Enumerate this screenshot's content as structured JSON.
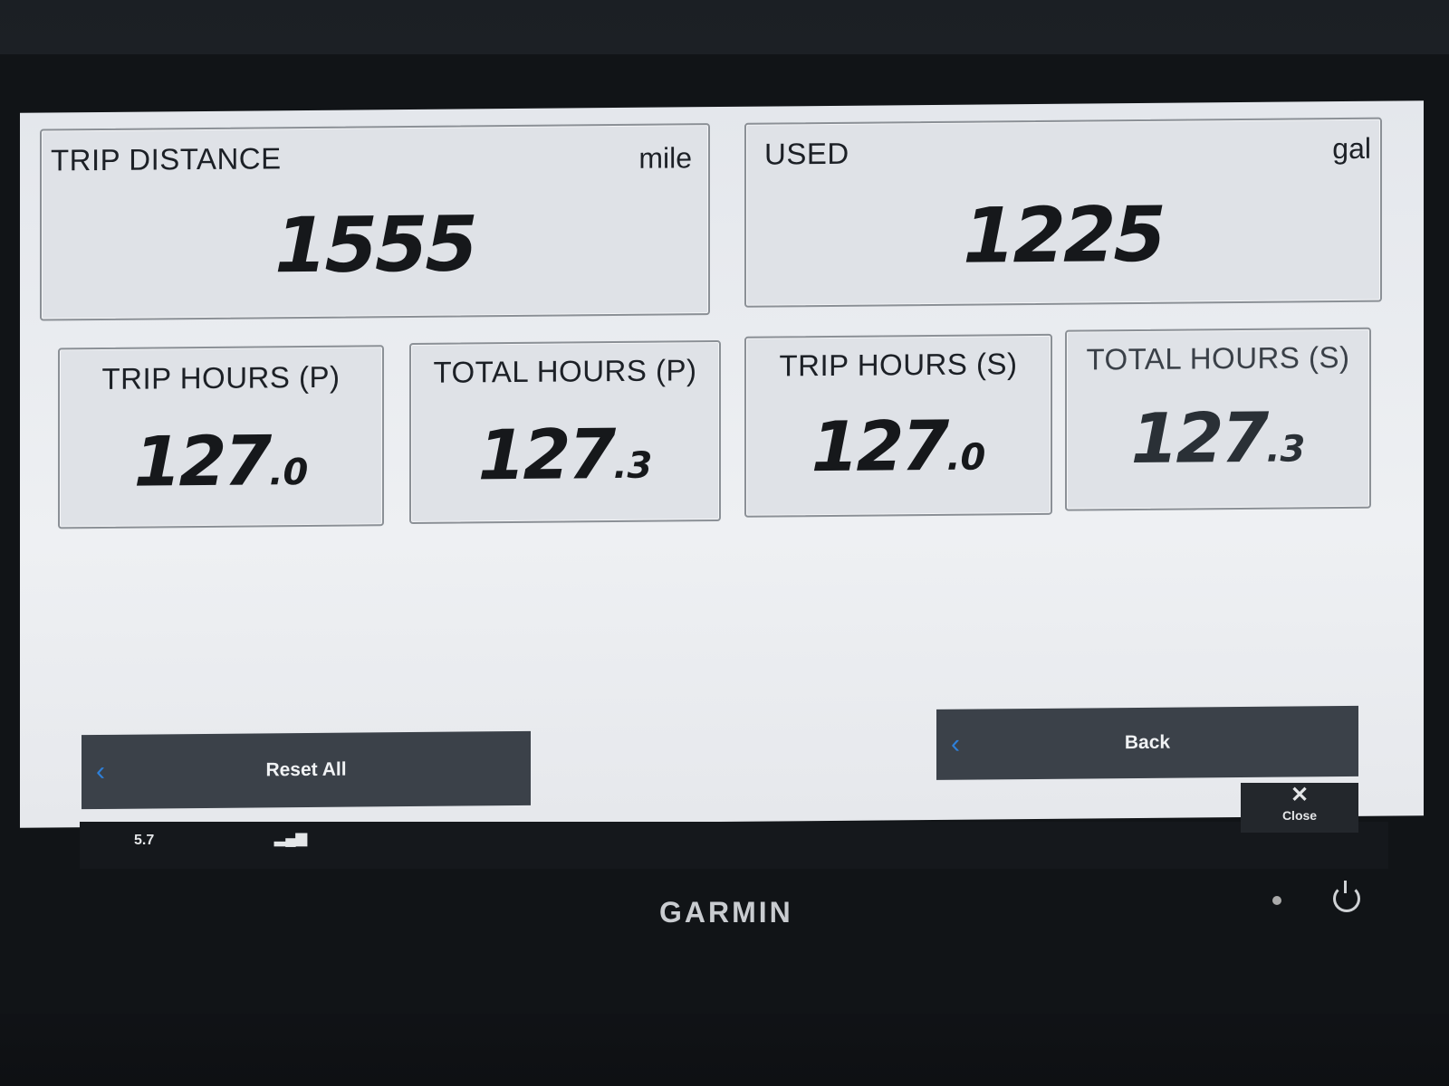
{
  "tiles": {
    "trip_distance": {
      "label": "TRIP DISTANCE",
      "unit": "mile",
      "value": "1555"
    },
    "used": {
      "label": "USED",
      "unit": "gal",
      "value": "1225"
    },
    "trip_hours_p": {
      "label": "TRIP HOURS (P)",
      "value_int": "127",
      "value_dec": ".0"
    },
    "total_hours_p": {
      "label": "TOTAL HOURS (P)",
      "value_int": "127",
      "value_dec": ".3"
    },
    "trip_hours_s": {
      "label": "TRIP HOURS (S)",
      "value_int": "127",
      "value_dec": ".0"
    },
    "total_hours_s": {
      "label": "TOTAL HOURS (S)",
      "value_int": "127",
      "value_dec": ".3"
    }
  },
  "buttons": {
    "reset_all": "Reset All",
    "back": "Back",
    "close": "Close",
    "chevron": "‹",
    "close_glyph": "✕"
  },
  "status_bar": {
    "reading": "5.7"
  },
  "brand": "GARMIN"
}
